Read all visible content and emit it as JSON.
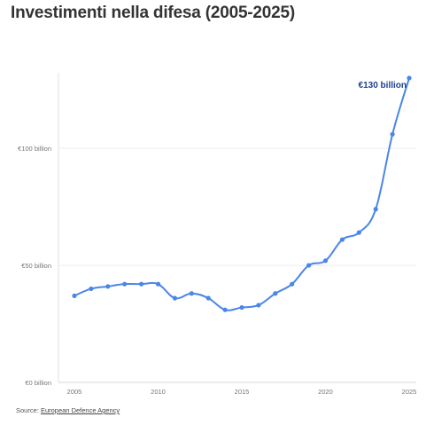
{
  "title": "Investimenti nella difesa (2005-2025)",
  "source": {
    "label": "Source:",
    "link_text": "European Defence Agency"
  },
  "chart_data": {
    "type": "line",
    "title": "Investimenti nella difesa (2005-2025)",
    "xlabel": "",
    "ylabel": "",
    "x": [
      2005,
      2006,
      2007,
      2008,
      2009,
      2010,
      2011,
      2012,
      2013,
      2014,
      2015,
      2016,
      2017,
      2018,
      2019,
      2020,
      2021,
      2022,
      2023,
      2024,
      2025
    ],
    "series": [
      {
        "values": [
          37,
          40,
          41,
          42,
          42,
          42,
          36,
          38,
          36,
          31,
          32,
          33,
          38,
          42,
          50,
          52,
          61,
          64,
          74,
          106,
          130
        ]
      }
    ],
    "xticks": [
      2005,
      2010,
      2015,
      2020,
      2025
    ],
    "yticks": [
      0,
      50,
      100
    ],
    "ytick_labels": [
      "€0 billion",
      "€50 billion",
      "€100 billion"
    ],
    "xlim": [
      2005,
      2025
    ],
    "ylim": [
      0,
      130
    ],
    "grid": true,
    "line_color": "#4a86e8",
    "annotation": {
      "text": "€130 billion",
      "x": 2025,
      "y": 130
    }
  }
}
